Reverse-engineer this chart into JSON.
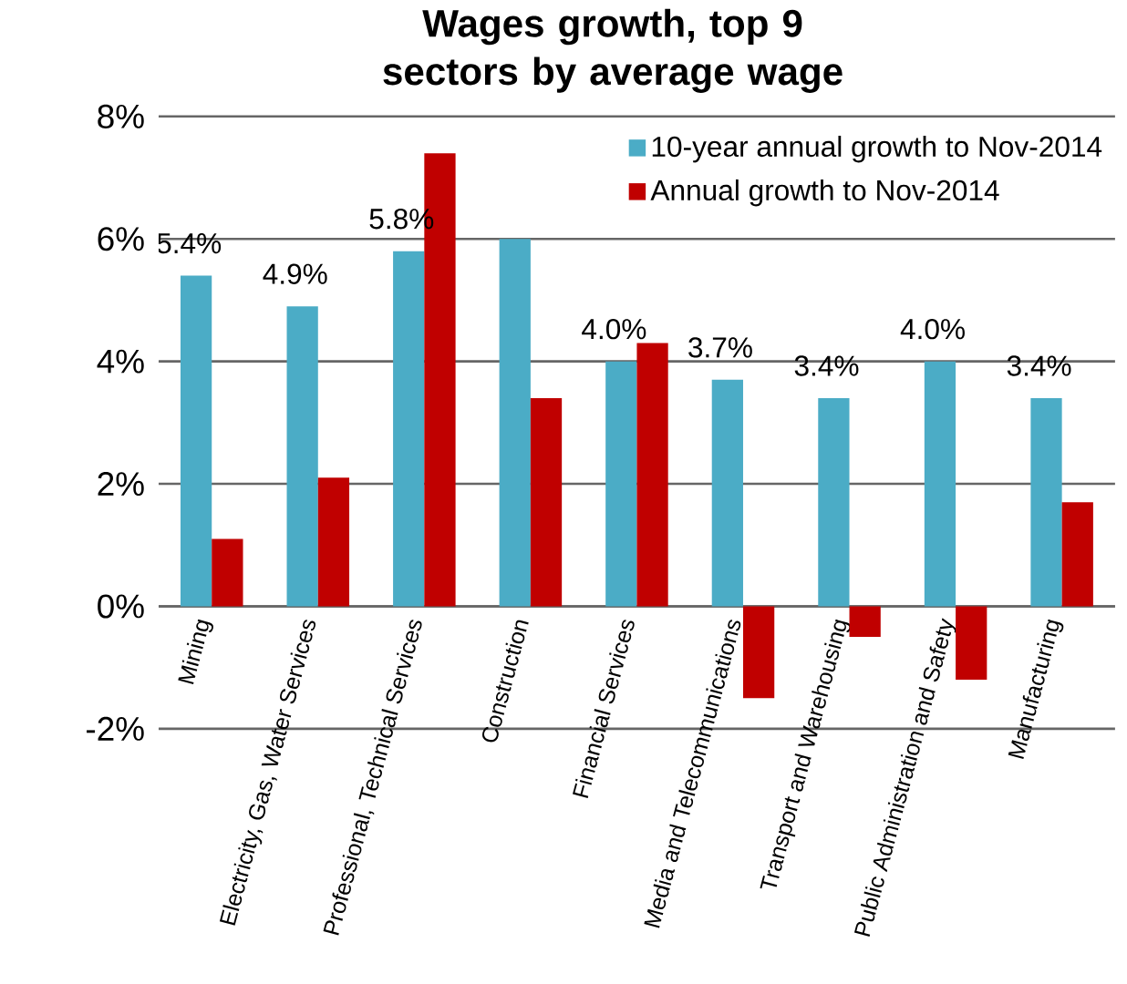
{
  "chart_data": {
    "type": "bar",
    "title": "Wages growth, top 9 sectors by average wage",
    "categories": [
      "Mining",
      "Electricity, Gas, Water Services",
      "Professional, Technical Services",
      "Construction",
      "Financial Services",
      "Media and Telecommunications",
      "Transport and Warehousing",
      "Public Administration and Safety",
      "Manufacturing"
    ],
    "series": [
      {
        "name": "10-year annual growth to Nov-2014",
        "color": "#4bacc6",
        "values": [
          5.4,
          4.9,
          5.8,
          6.0,
          4.0,
          3.7,
          3.4,
          4.0,
          3.4
        ],
        "value_labels": [
          "5.4%",
          "4.9%",
          "5.8%",
          null,
          "4.0%",
          "3.7%",
          "3.4%",
          "4.0%",
          "3.4%"
        ]
      },
      {
        "name": "Annual growth to Nov-2014",
        "color": "#c00000",
        "values": [
          1.1,
          2.1,
          7.4,
          3.4,
          4.3,
          -1.5,
          -0.5,
          -1.2,
          1.7
        ]
      }
    ],
    "ylim": [
      -2,
      8
    ],
    "yticks": [
      {
        "value": -2,
        "label": "-2%"
      },
      {
        "value": 0,
        "label": "0%"
      },
      {
        "value": 2,
        "label": "2%"
      },
      {
        "value": 4,
        "label": "4%"
      },
      {
        "value": 6,
        "label": "6%"
      },
      {
        "value": 8,
        "label": "8%"
      }
    ],
    "grid": "y",
    "legend": "top right"
  }
}
